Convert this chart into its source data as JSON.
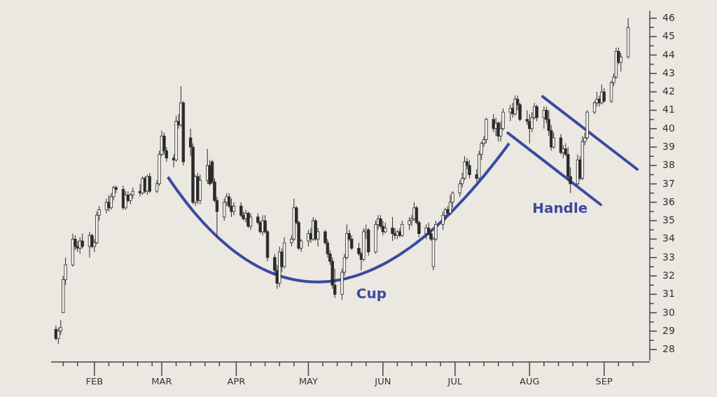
{
  "chart_data": {
    "type": "candlestick",
    "color": "#2b2b2b",
    "xlim": [
      "--01-14",
      "--09-20"
    ],
    "xticks": [
      {
        "value": "--01-19",
        "label": null
      },
      {
        "value": "--01-25",
        "label": null
      },
      {
        "value": "--02-01",
        "label": "FEB"
      },
      {
        "value": "--02-07",
        "label": null
      },
      {
        "value": "--02-13",
        "label": null
      },
      {
        "value": "--02-19",
        "label": null
      },
      {
        "value": "--02-25",
        "label": null
      },
      {
        "value": "--03-01",
        "label": "MAR"
      },
      {
        "value": "--03-07",
        "label": null
      },
      {
        "value": "--03-13",
        "label": null
      },
      {
        "value": "--03-19",
        "label": null
      },
      {
        "value": "--03-25",
        "label": null
      },
      {
        "value": "--04-01",
        "label": "APR"
      },
      {
        "value": "--04-07",
        "label": null
      },
      {
        "value": "--04-13",
        "label": null
      },
      {
        "value": "--04-19",
        "label": null
      },
      {
        "value": "--04-25",
        "label": null
      },
      {
        "value": "--05-01",
        "label": "MAY"
      },
      {
        "value": "--05-07",
        "label": null
      },
      {
        "value": "--05-13",
        "label": null
      },
      {
        "value": "--05-19",
        "label": null
      },
      {
        "value": "--05-25",
        "label": null
      },
      {
        "value": "--06-01",
        "label": "JUN"
      },
      {
        "value": "--06-07",
        "label": null
      },
      {
        "value": "--06-13",
        "label": null
      },
      {
        "value": "--06-19",
        "label": null
      },
      {
        "value": "--06-25",
        "label": null
      },
      {
        "value": "--07-01",
        "label": "JUL"
      },
      {
        "value": "--07-07",
        "label": null
      },
      {
        "value": "--07-13",
        "label": null
      },
      {
        "value": "--07-19",
        "label": null
      },
      {
        "value": "--07-25",
        "label": null
      },
      {
        "value": "--08-01",
        "label": "AUG"
      },
      {
        "value": "--08-07",
        "label": null
      },
      {
        "value": "--08-13",
        "label": null
      },
      {
        "value": "--08-19",
        "label": null
      },
      {
        "value": "--08-25",
        "label": null
      },
      {
        "value": "--09-01",
        "label": "SEP"
      },
      {
        "value": "--09-07",
        "label": null
      },
      {
        "value": "--09-13",
        "label": null
      }
    ],
    "ylim": [
      27.4,
      46.4
    ],
    "yticks": [
      28,
      {
        "value": 28.5,
        "label": null
      },
      29,
      {
        "value": 29.5,
        "label": null
      },
      30,
      {
        "value": 30.5,
        "label": null
      },
      31,
      {
        "value": 31.5,
        "label": null
      },
      32,
      {
        "value": 32.5,
        "label": null
      },
      33,
      {
        "value": 33.5,
        "label": null
      },
      34,
      {
        "value": 34.5,
        "label": null
      },
      35,
      {
        "value": 35.5,
        "label": null
      },
      36,
      {
        "value": 36.5,
        "label": null
      },
      37,
      {
        "value": 37.5,
        "label": null
      },
      38,
      {
        "value": 38.5,
        "label": null
      },
      39,
      {
        "value": 39.5,
        "label": null
      },
      40,
      {
        "value": 40.5,
        "label": null
      },
      41,
      {
        "value": 41.5,
        "label": null
      },
      42,
      {
        "value": 42.5,
        "label": null
      },
      43,
      {
        "value": 43.5,
        "label": null
      },
      44,
      {
        "value": 44.5,
        "label": null
      },
      45,
      {
        "value": 45.5,
        "label": null
      },
      46
    ],
    "grid": false,
    "annotations": [
      "Cup",
      "Handle"
    ],
    "x": [
      "--01-16",
      "--01-17",
      "--01-18",
      "--01-19",
      "--01-20",
      "--01-23",
      "--01-24",
      "--01-25",
      "--01-26",
      "--01-27",
      "--01-30",
      "--01-31",
      "--02-01",
      "--02-02",
      "--02-03",
      "--02-06",
      "--02-07",
      "--02-08",
      "--02-09",
      "--02-10",
      "--02-13",
      "--02-14",
      "--02-15",
      "--02-16",
      "--02-17",
      "--02-20",
      "--02-21",
      "--02-22",
      "--02-23",
      "--02-24",
      "--02-27",
      "--02-28",
      "--03-01",
      "--03-02",
      "--03-03",
      "--03-06",
      "--03-07",
      "--03-08",
      "--03-09",
      "--03-10",
      "--03-13",
      "--03-14",
      "--03-15",
      "--03-16",
      "--03-17",
      "--03-20",
      "--03-21",
      "--03-22",
      "--03-23",
      "--03-24",
      "--03-27",
      "--03-28",
      "--03-29",
      "--03-30",
      "--03-31",
      "--04-03",
      "--04-04",
      "--04-05",
      "--04-06",
      "--04-07",
      "--04-10",
      "--04-11",
      "--04-12",
      "--04-13",
      "--04-14",
      "--04-17",
      "--04-18",
      "--04-19",
      "--04-20",
      "--04-21",
      "--04-24",
      "--04-25",
      "--04-26",
      "--04-27",
      "--04-28",
      "--05-01",
      "--05-02",
      "--05-03",
      "--05-04",
      "--05-05",
      "--05-08",
      "--05-09",
      "--05-10",
      "--05-11",
      "--05-12",
      "--05-15",
      "--05-16",
      "--05-17",
      "--05-18",
      "--05-19",
      "--05-22",
      "--05-23",
      "--05-24",
      "--05-25",
      "--05-26",
      "--05-29",
      "--05-30",
      "--05-31",
      "--06-01",
      "--06-02",
      "--06-05",
      "--06-06",
      "--06-07",
      "--06-08",
      "--06-09",
      "--06-12",
      "--06-13",
      "--06-14",
      "--06-15",
      "--06-16",
      "--06-19",
      "--06-20",
      "--06-21",
      "--06-22",
      "--06-23",
      "--06-26",
      "--06-27",
      "--06-28",
      "--06-29",
      "--06-30",
      "--07-03",
      "--07-04",
      "--07-05",
      "--07-06",
      "--07-07",
      "--07-10",
      "--07-11",
      "--07-12",
      "--07-13",
      "--07-14",
      "--07-17",
      "--07-18",
      "--07-19",
      "--07-20",
      "--07-21",
      "--07-24",
      "--07-25",
      "--07-26",
      "--07-27",
      "--07-28",
      "--07-31",
      "--08-01",
      "--08-02",
      "--08-03",
      "--08-04",
      "--08-07",
      "--08-08",
      "--08-09",
      "--08-10",
      "--08-11",
      "--08-14",
      "--08-15",
      "--08-16",
      "--08-17",
      "--08-18",
      "--08-21",
      "--08-22",
      "--08-23",
      "--08-24",
      "--08-25",
      "--08-28",
      "--08-29",
      "--08-30",
      "--08-31",
      "--09-01",
      "--09-04",
      "--09-05",
      "--09-06",
      "--09-07",
      "--09-08",
      "--09-11"
    ],
    "ohlc": [
      [
        29.1,
        29.3,
        28.5,
        28.6
      ],
      [
        28.6,
        29.2,
        28.3,
        29.0
      ],
      [
        29.0,
        29.6,
        28.8,
        29.2
      ],
      [
        30.0,
        32.0,
        30.0,
        31.8
      ],
      [
        31.8,
        33.0,
        31.5,
        32.6
      ],
      [
        32.6,
        34.3,
        32.5,
        34.0
      ],
      [
        34.0,
        34.2,
        33.4,
        33.6
      ],
      [
        33.6,
        33.9,
        33.3,
        33.5
      ],
      [
        33.5,
        34.1,
        33.2,
        33.9
      ],
      [
        33.9,
        34.3,
        33.5,
        33.6
      ],
      [
        33.6,
        34.4,
        33.0,
        34.2
      ],
      [
        34.2,
        34.3,
        33.5,
        33.6
      ],
      [
        33.6,
        34.0,
        33.3,
        33.8
      ],
      [
        33.8,
        35.5,
        33.7,
        35.3
      ],
      [
        35.3,
        35.8,
        35.0,
        35.6
      ],
      [
        35.6,
        36.2,
        35.4,
        36.0
      ],
      [
        36.0,
        36.4,
        35.5,
        35.7
      ],
      [
        35.7,
        36.5,
        35.6,
        36.3
      ],
      [
        36.3,
        36.9,
        36.1,
        36.8
      ],
      [
        36.8,
        36.9,
        36.5,
        36.7
      ],
      [
        36.7,
        36.9,
        35.6,
        35.7
      ],
      [
        35.7,
        36.6,
        35.6,
        36.4
      ],
      [
        36.4,
        36.6,
        36.0,
        36.1
      ],
      [
        36.1,
        36.5,
        35.9,
        36.4
      ],
      [
        36.4,
        36.8,
        36.2,
        36.6
      ],
      [
        36.6,
        37.0,
        36.3,
        36.5
      ],
      [
        36.5,
        37.4,
        36.4,
        37.3
      ],
      [
        37.3,
        37.4,
        36.5,
        36.6
      ],
      [
        36.6,
        37.5,
        36.4,
        37.4
      ],
      [
        37.4,
        37.6,
        36.5,
        36.6
      ],
      [
        36.6,
        37.2,
        36.5,
        37.0
      ],
      [
        37.0,
        38.8,
        36.9,
        38.6
      ],
      [
        38.6,
        39.9,
        38.5,
        39.6
      ],
      [
        39.6,
        39.8,
        38.6,
        38.8
      ],
      [
        38.8,
        39.0,
        38.2,
        38.4
      ],
      [
        38.4,
        38.6,
        37.9,
        38.3
      ],
      [
        38.3,
        40.7,
        38.2,
        40.4
      ],
      [
        40.4,
        40.8,
        40.0,
        40.2
      ],
      [
        40.2,
        42.3,
        40.1,
        41.4
      ],
      [
        41.4,
        41.5,
        38.0,
        38.2
      ],
      [
        39.5,
        40.0,
        38.5,
        39.0
      ],
      [
        39.0,
        39.2,
        35.9,
        36.0
      ],
      [
        36.0,
        37.5,
        35.8,
        37.4
      ],
      [
        37.4,
        37.6,
        35.9,
        36.1
      ],
      [
        36.1,
        37.5,
        35.9,
        37.2
      ],
      [
        37.2,
        38.9,
        37.0,
        38.0
      ],
      [
        38.0,
        38.3,
        36.9,
        37.0
      ],
      [
        38.2,
        38.3,
        37.0,
        37.1
      ],
      [
        37.1,
        37.3,
        36.0,
        36.1
      ],
      [
        36.1,
        36.3,
        34.1,
        35.5
      ],
      [
        35.2,
        36.2,
        35.0,
        36.0
      ],
      [
        36.0,
        36.5,
        35.8,
        36.3
      ],
      [
        36.3,
        36.5,
        35.7,
        35.8
      ],
      [
        35.8,
        36.2,
        35.2,
        35.5
      ],
      [
        35.5,
        36.0,
        35.3,
        35.8
      ],
      [
        35.8,
        36.0,
        35.2,
        35.3
      ],
      [
        35.3,
        35.5,
        35.0,
        35.1
      ],
      [
        35.1,
        35.6,
        34.9,
        35.4
      ],
      [
        35.4,
        35.5,
        34.6,
        34.7
      ],
      [
        34.7,
        35.4,
        34.5,
        35.2
      ],
      [
        35.2,
        35.4,
        34.8,
        34.9
      ],
      [
        34.9,
        35.0,
        34.3,
        34.4
      ],
      [
        34.4,
        35.3,
        34.2,
        35.0
      ],
      [
        35.0,
        35.3,
        34.3,
        34.4
      ],
      [
        34.4,
        34.5,
        32.8,
        33.0
      ],
      [
        33.0,
        33.2,
        32.1,
        32.3
      ],
      [
        32.3,
        32.6,
        31.3,
        31.6
      ],
      [
        31.6,
        33.6,
        31.4,
        33.3
      ],
      [
        33.3,
        33.5,
        32.2,
        32.5
      ],
      [
        32.5,
        34.1,
        32.4,
        33.8
      ],
      [
        33.8,
        34.2,
        33.6,
        34.0
      ],
      [
        34.0,
        36.2,
        33.9,
        35.7
      ],
      [
        35.7,
        35.8,
        34.8,
        34.9
      ],
      [
        34.9,
        35.0,
        33.4,
        33.5
      ],
      [
        33.5,
        34.0,
        33.3,
        33.9
      ],
      [
        33.9,
        34.5,
        33.6,
        34.3
      ],
      [
        34.3,
        34.6,
        33.8,
        34.0
      ],
      [
        34.0,
        35.2,
        33.9,
        35.0
      ],
      [
        35.0,
        35.1,
        33.9,
        34.0
      ],
      [
        34.0,
        34.6,
        33.6,
        34.4
      ],
      [
        34.4,
        34.5,
        33.7,
        33.8
      ],
      [
        33.8,
        34.0,
        33.0,
        33.2
      ],
      [
        33.2,
        33.4,
        32.6,
        32.8
      ],
      [
        32.8,
        33.0,
        31.3,
        31.5
      ],
      [
        31.5,
        32.4,
        30.8,
        31.0
      ],
      [
        31.0,
        32.4,
        30.7,
        32.2
      ],
      [
        32.2,
        33.2,
        32.0,
        33.0
      ],
      [
        33.0,
        34.8,
        32.9,
        34.3
      ],
      [
        34.3,
        34.5,
        33.9,
        34.0
      ],
      [
        34.0,
        34.2,
        33.4,
        33.5
      ],
      [
        33.5,
        33.8,
        33.1,
        33.2
      ],
      [
        33.2,
        33.3,
        32.3,
        32.9
      ],
      [
        32.9,
        34.6,
        32.8,
        34.4
      ],
      [
        34.4,
        34.8,
        34.0,
        34.5
      ],
      [
        34.5,
        34.6,
        33.1,
        33.3
      ],
      [
        33.3,
        35.0,
        33.2,
        34.8
      ],
      [
        34.8,
        35.3,
        34.5,
        35.1
      ],
      [
        35.1,
        35.3,
        34.6,
        34.7
      ],
      [
        34.7,
        35.0,
        34.2,
        34.4
      ],
      [
        34.4,
        34.9,
        34.3,
        34.6
      ],
      [
        34.6,
        35.2,
        33.9,
        34.3
      ],
      [
        34.3,
        34.6,
        34.0,
        34.2
      ],
      [
        34.2,
        34.5,
        34.0,
        34.4
      ],
      [
        34.4,
        34.6,
        34.1,
        34.2
      ],
      [
        34.2,
        35.0,
        34.1,
        34.8
      ],
      [
        34.8,
        35.2,
        34.5,
        35.0
      ],
      [
        35.0,
        35.3,
        34.7,
        35.1
      ],
      [
        35.1,
        36.0,
        35.0,
        35.7
      ],
      [
        35.7,
        35.8,
        34.8,
        34.9
      ],
      [
        34.9,
        35.0,
        34.1,
        34.3
      ],
      [
        34.3,
        34.8,
        34.0,
        34.6
      ],
      [
        34.6,
        34.9,
        34.2,
        34.3
      ],
      [
        34.3,
        34.5,
        33.9,
        34.0
      ],
      [
        32.5,
        34.1,
        32.3,
        34.0
      ],
      [
        34.0,
        35.0,
        33.9,
        34.8
      ],
      [
        34.8,
        35.5,
        34.5,
        35.3
      ],
      [
        35.3,
        35.7,
        35.0,
        35.6
      ],
      [
        35.6,
        35.8,
        35.3,
        35.4
      ],
      [
        35.4,
        36.4,
        35.3,
        36.0
      ],
      [
        36.0,
        36.6,
        35.7,
        36.5
      ],
      [
        36.5,
        37.2,
        36.3,
        37.0
      ],
      [
        37.0,
        37.6,
        36.8,
        37.3
      ],
      [
        37.3,
        38.5,
        37.2,
        38.2
      ],
      [
        38.2,
        38.4,
        37.8,
        38.0
      ],
      [
        38.0,
        38.3,
        37.3,
        37.5
      ],
      [
        37.5,
        37.8,
        37.1,
        37.3
      ],
      [
        37.3,
        38.8,
        37.2,
        38.6
      ],
      [
        38.6,
        39.3,
        38.3,
        39.2
      ],
      [
        39.2,
        39.6,
        39.0,
        39.4
      ],
      [
        39.4,
        40.6,
        39.2,
        40.5
      ],
      [
        40.5,
        40.8,
        39.8,
        40.0
      ],
      [
        40.0,
        40.6,
        39.6,
        40.3
      ],
      [
        40.3,
        40.4,
        39.3,
        39.6
      ],
      [
        39.6,
        40.4,
        39.3,
        40.0
      ],
      [
        40.0,
        41.1,
        39.9,
        40.9
      ],
      [
        40.9,
        41.3,
        40.4,
        41.1
      ],
      [
        41.1,
        41.4,
        40.6,
        40.8
      ],
      [
        40.8,
        41.8,
        40.7,
        41.6
      ],
      [
        41.6,
        41.8,
        41.0,
        41.3
      ],
      [
        41.3,
        41.4,
        40.4,
        40.5
      ],
      [
        40.5,
        41.0,
        40.2,
        40.4
      ],
      [
        40.4,
        40.8,
        39.2,
        40.0
      ],
      [
        40.0,
        40.9,
        39.8,
        40.6
      ],
      [
        40.6,
        41.4,
        40.5,
        41.2
      ],
      [
        41.2,
        41.3,
        40.4,
        40.6
      ],
      [
        40.6,
        41.2,
        40.0,
        41.0
      ],
      [
        41.0,
        41.2,
        40.3,
        40.5
      ],
      [
        40.5,
        41.0,
        39.6,
        39.9
      ],
      [
        39.9,
        40.2,
        38.8,
        39.0
      ],
      [
        39.0,
        39.8,
        38.9,
        39.5
      ],
      [
        39.5,
        39.7,
        38.6,
        38.7
      ],
      [
        38.7,
        39.1,
        38.4,
        38.9
      ],
      [
        38.9,
        39.2,
        38.5,
        38.6
      ],
      [
        38.6,
        39.0,
        37.2,
        37.4
      ],
      [
        37.4,
        37.9,
        36.5,
        37.0
      ],
      [
        37.0,
        38.6,
        36.9,
        38.3
      ],
      [
        38.3,
        38.5,
        37.2,
        37.3
      ],
      [
        37.3,
        39.6,
        37.2,
        39.3
      ],
      [
        39.3,
        39.8,
        39.1,
        39.5
      ],
      [
        39.5,
        41.0,
        39.4,
        40.9
      ],
      [
        40.9,
        41.5,
        40.8,
        41.4
      ],
      [
        41.4,
        42.0,
        41.2,
        41.6
      ],
      [
        41.6,
        41.8,
        41.2,
        41.4
      ],
      [
        41.4,
        42.4,
        41.3,
        42.0
      ],
      [
        42.0,
        42.2,
        41.4,
        41.5
      ],
      [
        41.5,
        42.6,
        41.4,
        42.5
      ],
      [
        42.5,
        43.0,
        42.3,
        42.8
      ],
      [
        42.8,
        44.4,
        42.7,
        44.2
      ],
      [
        44.2,
        44.4,
        43.5,
        43.6
      ],
      [
        43.6,
        44.1,
        43.1,
        43.9
      ],
      [
        43.9,
        46.0,
        43.8,
        45.5
      ]
    ]
  }
}
